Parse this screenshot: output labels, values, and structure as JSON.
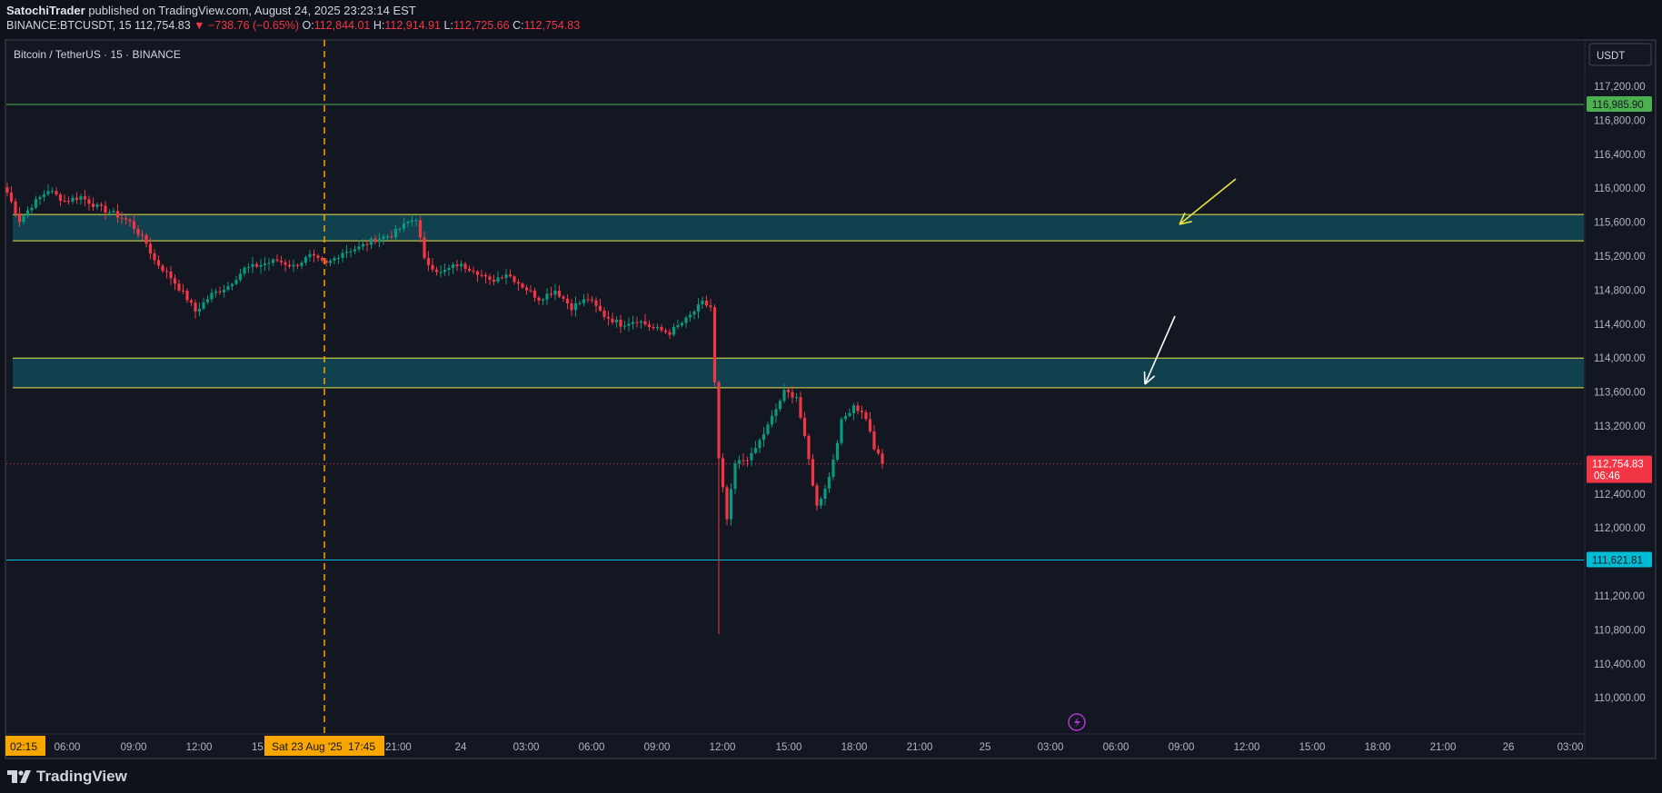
{
  "header": {
    "author": "SatochiTrader",
    "published": "published on TradingView.com, August 24, 2025 23:23:14 EST",
    "symbol": "BINANCE:BTCUSDT, 15",
    "last": "112,754.83",
    "change": "▼ −738.76 (−0.65%)",
    "o_label": "O:",
    "o_val": "112,844.01",
    "h_label": "H:",
    "h_val": "112,914.91",
    "l_label": "L:",
    "l_val": "112,725.66",
    "c_label": "C:",
    "c_val": "112,754.83"
  },
  "chart_title": "Bitcoin / TetherUS · 15 · BINANCE",
  "currency_button": "USDT",
  "crosshair_date_label": "Sat 23 Aug '25",
  "crosshair_time_label": "17:45",
  "time_start_label": "02:15",
  "footer": {
    "brand": "TradingView"
  },
  "colors": {
    "background": "#131722",
    "up": "#089981",
    "down": "#f23645",
    "zone_fill": "#11414e",
    "zone_border": "#e8e345",
    "resistance_line": "#4caf50",
    "support_line": "#00bcd4",
    "crosshair": "#f7a600"
  },
  "chart_data": {
    "type": "candlestick",
    "title": "Bitcoin / TetherUS · 15 · BINANCE",
    "interval": "15",
    "currency": "USDT",
    "ylim": [
      109700,
      117500
    ],
    "y_ticks": [
      "117,200.00",
      "116,800.00",
      "116,400.00",
      "116,000.00",
      "115,600.00",
      "115,200.00",
      "114,800.00",
      "114,400.00",
      "114,000.00",
      "113,600.00",
      "113,200.00",
      "112,400.00",
      "112,000.00",
      "111,200.00",
      "110,800.00",
      "110,400.00",
      "110,000.00"
    ],
    "x_ticks": [
      "06:00",
      "09:00",
      "12:00",
      "15:",
      "21:00",
      "24",
      "03:00",
      "06:00",
      "09:00",
      "12:00",
      "15:00",
      "18:00",
      "21:00",
      "25",
      "03:00",
      "06:00",
      "09:00",
      "12:00",
      "15:00",
      "18:00",
      "21:00",
      "26",
      "03:00"
    ],
    "price_labels": [
      {
        "value": "116,985.90",
        "price": 116985.9,
        "kind": "resistance"
      },
      {
        "value": "112,754.83",
        "price": 112754.83,
        "kind": "last"
      },
      {
        "value": "06:46",
        "kind": "countdown"
      },
      {
        "value": "111,621.81",
        "price": 111621.81,
        "kind": "support"
      }
    ],
    "zones": [
      {
        "top": 115690,
        "bottom": 115380
      },
      {
        "top": 114000,
        "bottom": 113650
      }
    ],
    "hlines": [
      {
        "price": 116985.9,
        "color": "#4caf50"
      },
      {
        "price": 111621.81,
        "color": "#00bcd4"
      }
    ],
    "last_price": 112754.83,
    "arrows": [
      {
        "color": "#e8e345",
        "from": [
          115780,
          114280
        ],
        "to": [
          115690,
          115500
        ]
      },
      {
        "color": "#ffffff",
        "from": [
          115070,
          114490
        ],
        "to": [
          114880,
          113680
        ]
      }
    ],
    "path": [
      [
        0,
        115950
      ],
      [
        3,
        115620
      ],
      [
        6,
        115800
      ],
      [
        10,
        115980
      ],
      [
        14,
        115850
      ],
      [
        18,
        115900
      ],
      [
        22,
        115780
      ],
      [
        26,
        115700
      ],
      [
        30,
        115600
      ],
      [
        34,
        115350
      ],
      [
        36,
        115150
      ],
      [
        40,
        114950
      ],
      [
        44,
        114700
      ],
      [
        46,
        114550
      ],
      [
        50,
        114750
      ],
      [
        54,
        114850
      ],
      [
        58,
        115050
      ],
      [
        62,
        115100
      ],
      [
        66,
        115150
      ],
      [
        70,
        115080
      ],
      [
        74,
        115200
      ],
      [
        78,
        115100
      ],
      [
        82,
        115250
      ],
      [
        86,
        115300
      ],
      [
        90,
        115400
      ],
      [
        94,
        115450
      ],
      [
        98,
        115600
      ],
      [
        100,
        115650
      ],
      [
        102,
        115150
      ],
      [
        106,
        115000
      ],
      [
        110,
        115100
      ],
      [
        114,
        115050
      ],
      [
        118,
        114900
      ],
      [
        122,
        115000
      ],
      [
        126,
        114850
      ],
      [
        130,
        114700
      ],
      [
        134,
        114800
      ],
      [
        138,
        114600
      ],
      [
        142,
        114700
      ],
      [
        146,
        114500
      ],
      [
        150,
        114400
      ],
      [
        154,
        114450
      ],
      [
        158,
        114350
      ],
      [
        162,
        114300
      ],
      [
        166,
        114450
      ],
      [
        170,
        114650
      ],
      [
        172,
        114600
      ],
      [
        174,
        112800
      ],
      [
        176,
        112100
      ],
      [
        178,
        112750
      ],
      [
        182,
        112850
      ],
      [
        186,
        113200
      ],
      [
        190,
        113600
      ],
      [
        193,
        113550
      ],
      [
        196,
        112800
      ],
      [
        198,
        112250
      ],
      [
        201,
        112600
      ],
      [
        204,
        113250
      ],
      [
        207,
        113450
      ],
      [
        210,
        113300
      ],
      [
        212,
        112940
      ],
      [
        214,
        112755
      ]
    ],
    "low_wick": {
      "index": 174,
      "low": 110750
    }
  }
}
